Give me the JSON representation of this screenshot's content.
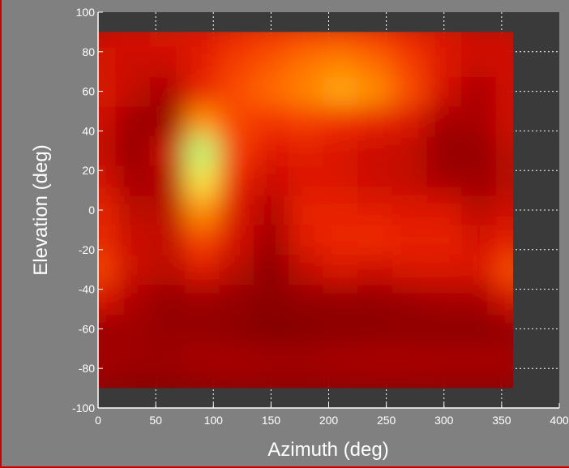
{
  "chart_data": {
    "type": "heatmap",
    "title": "",
    "xlabel": "Azimuth (deg)",
    "ylabel": "Elevation (deg)",
    "xlim": [
      0,
      400
    ],
    "ylim": [
      -100,
      100
    ],
    "x_ticks": [
      0,
      50,
      100,
      150,
      200,
      250,
      300,
      350,
      400
    ],
    "y_ticks": [
      -100,
      -80,
      -60,
      -40,
      -20,
      0,
      20,
      40,
      60,
      80,
      100
    ],
    "grid": true,
    "data_extent": {
      "x": [
        0,
        360
      ],
      "y": [
        -90,
        90
      ]
    },
    "colormap": [
      "#6a0000",
      "#a00000",
      "#d81000",
      "#f23000",
      "#ff6a00",
      "#ffa000",
      "#ffe040",
      "#f0ff60",
      "#60f0a0"
    ],
    "axes_background": "#3a3a3a",
    "grid_x": [
      0,
      30,
      60,
      90,
      120,
      150,
      180,
      210,
      240,
      270,
      300,
      330,
      360
    ],
    "grid_y": [
      -90,
      -75,
      -60,
      -45,
      -30,
      -15,
      0,
      15,
      30,
      45,
      60,
      75,
      90
    ],
    "values": [
      [
        0.1,
        0.08,
        0.08,
        0.09,
        0.1,
        0.1,
        0.1,
        0.1,
        0.1,
        0.1,
        0.1,
        0.1,
        0.1
      ],
      [
        0.14,
        0.12,
        0.12,
        0.14,
        0.14,
        0.13,
        0.13,
        0.14,
        0.15,
        0.15,
        0.14,
        0.14,
        0.14
      ],
      [
        0.12,
        0.12,
        0.1,
        0.1,
        0.08,
        0.06,
        0.07,
        0.08,
        0.08,
        0.08,
        0.08,
        0.08,
        0.1
      ],
      [
        0.28,
        0.16,
        0.1,
        0.12,
        0.1,
        0.08,
        0.1,
        0.1,
        0.1,
        0.12,
        0.14,
        0.14,
        0.26
      ],
      [
        0.42,
        0.22,
        0.18,
        0.28,
        0.18,
        0.08,
        0.2,
        0.26,
        0.22,
        0.26,
        0.26,
        0.26,
        0.44
      ],
      [
        0.36,
        0.22,
        0.2,
        0.42,
        0.24,
        0.12,
        0.3,
        0.34,
        0.36,
        0.32,
        0.32,
        0.24,
        0.32
      ],
      [
        0.34,
        0.18,
        0.18,
        0.6,
        0.26,
        0.16,
        0.32,
        0.32,
        0.3,
        0.28,
        0.28,
        0.18,
        0.24
      ],
      [
        0.26,
        0.14,
        0.16,
        0.78,
        0.32,
        0.22,
        0.28,
        0.26,
        0.22,
        0.2,
        0.14,
        0.12,
        0.18
      ],
      [
        0.22,
        0.1,
        0.22,
        0.92,
        0.4,
        0.28,
        0.3,
        0.26,
        0.22,
        0.2,
        0.1,
        0.1,
        0.2
      ],
      [
        0.24,
        0.12,
        0.1,
        0.6,
        0.42,
        0.38,
        0.4,
        0.36,
        0.32,
        0.26,
        0.14,
        0.14,
        0.24
      ],
      [
        0.28,
        0.2,
        0.14,
        0.34,
        0.44,
        0.5,
        0.56,
        0.64,
        0.58,
        0.44,
        0.24,
        0.14,
        0.24
      ],
      [
        0.26,
        0.22,
        0.22,
        0.3,
        0.4,
        0.46,
        0.52,
        0.56,
        0.5,
        0.4,
        0.28,
        0.22,
        0.24
      ],
      [
        0.22,
        0.24,
        0.26,
        0.28,
        0.34,
        0.38,
        0.4,
        0.4,
        0.38,
        0.32,
        0.26,
        0.22,
        0.22
      ]
    ]
  }
}
